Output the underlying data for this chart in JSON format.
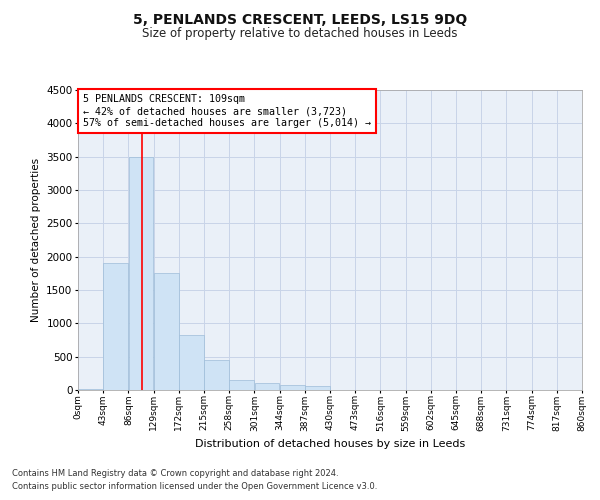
{
  "title": "5, PENLANDS CRESCENT, LEEDS, LS15 9DQ",
  "subtitle": "Size of property relative to detached houses in Leeds",
  "xlabel": "Distribution of detached houses by size in Leeds",
  "ylabel": "Number of detached properties",
  "annotation_line1": "5 PENLANDS CRESCENT: 109sqm",
  "annotation_line2": "← 42% of detached houses are smaller (3,723)",
  "annotation_line3": "57% of semi-detached houses are larger (5,014) →",
  "footer_line1": "Contains HM Land Registry data © Crown copyright and database right 2024.",
  "footer_line2": "Contains public sector information licensed under the Open Government Licence v3.0.",
  "bar_color": "#cfe3f5",
  "bar_edge_color": "#9dbcd8",
  "ax_bg_color": "#eaf0f8",
  "redline_x": 109,
  "bins": [
    0,
    43,
    86,
    129,
    172,
    215,
    258,
    301,
    344,
    387,
    430,
    473,
    516,
    559,
    602,
    645,
    688,
    731,
    774,
    817,
    860
  ],
  "bin_labels": [
    "0sqm",
    "43sqm",
    "86sqm",
    "129sqm",
    "172sqm",
    "215sqm",
    "258sqm",
    "301sqm",
    "344sqm",
    "387sqm",
    "430sqm",
    "473sqm",
    "516sqm",
    "559sqm",
    "602sqm",
    "645sqm",
    "688sqm",
    "731sqm",
    "774sqm",
    "817sqm",
    "860sqm"
  ],
  "bar_heights": [
    20,
    1900,
    3500,
    1750,
    830,
    450,
    150,
    100,
    75,
    60,
    0,
    0,
    0,
    0,
    0,
    0,
    0,
    0,
    0,
    0
  ],
  "ylim": [
    0,
    4500
  ],
  "yticks": [
    0,
    500,
    1000,
    1500,
    2000,
    2500,
    3000,
    3500,
    4000,
    4500
  ],
  "background_color": "#ffffff",
  "grid_color": "#c8d4e8"
}
